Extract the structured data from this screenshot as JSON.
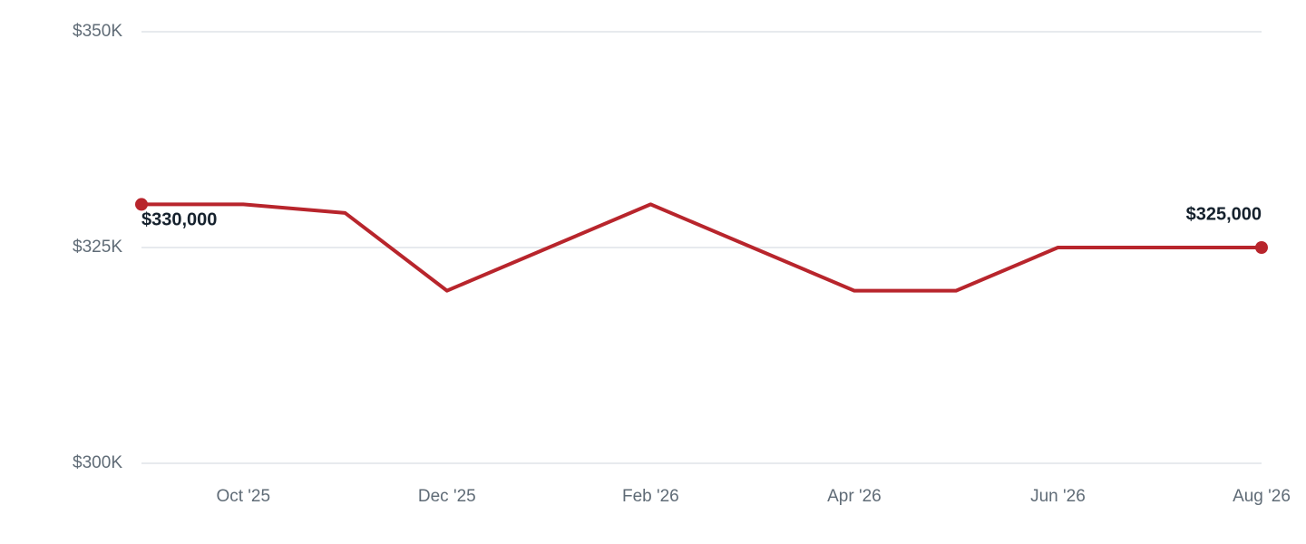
{
  "chart_data": {
    "type": "line",
    "categories": [
      null,
      "Oct '25",
      null,
      "Dec '25",
      null,
      "Feb '26",
      null,
      "Apr '26",
      null,
      "Jun '26",
      null,
      "Aug '26"
    ],
    "series": [
      {
        "color": "#b8252c",
        "values": [
          330000,
          330000,
          329000,
          320000,
          325000,
          330000,
          325000,
          320000,
          320000,
          325000,
          325000,
          325000
        ],
        "value_labels": [
          "$330,000",
          null,
          null,
          null,
          null,
          null,
          null,
          null,
          null,
          null,
          null,
          "$325,000"
        ]
      }
    ],
    "ylim": [
      300000,
      350000
    ],
    "yticks": [
      {
        "value": 300000,
        "label": "$300K"
      },
      {
        "value": 325000,
        "label": "$325K"
      },
      {
        "value": 350000,
        "label": "$350K"
      }
    ],
    "grid": true
  }
}
